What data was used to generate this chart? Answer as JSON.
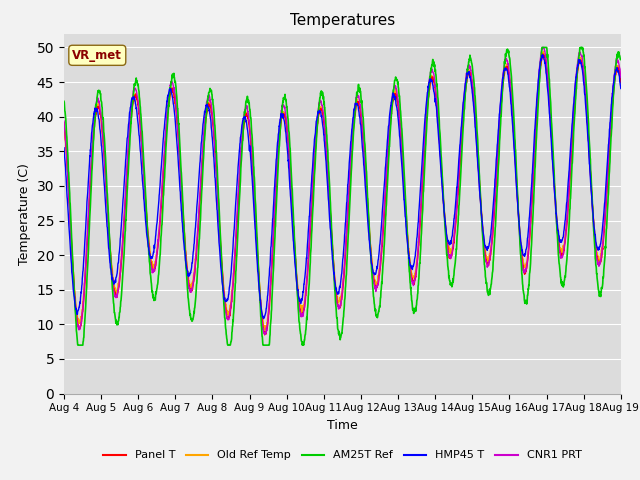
{
  "title": "Temperatures",
  "xlabel": "Time",
  "ylabel": "Temperature (C)",
  "ylim": [
    0,
    52
  ],
  "yticks": [
    0,
    5,
    10,
    15,
    20,
    25,
    30,
    35,
    40,
    45,
    50
  ],
  "background_color": "#dcdcdc",
  "figure_color": "#f2f2f2",
  "series": [
    {
      "label": "Panel T",
      "color": "#ff0000",
      "lw": 1.0,
      "zorder": 3
    },
    {
      "label": "Old Ref Temp",
      "color": "#ffa500",
      "lw": 1.0,
      "zorder": 2
    },
    {
      "label": "AM25T Ref",
      "color": "#00cc00",
      "lw": 1.2,
      "zorder": 4
    },
    {
      "label": "HMP45 T",
      "color": "#0000ff",
      "lw": 1.0,
      "zorder": 5
    },
    {
      "label": "CNR1 PRT",
      "color": "#cc00cc",
      "lw": 1.0,
      "zorder": 3
    }
  ],
  "annotation_text": "VR_met",
  "date_labels": [
    "Aug 4",
    "Aug 5",
    "Aug 6",
    "Aug 7",
    "Aug 8",
    "Aug 9",
    "Aug 10",
    "Aug 11",
    "Aug 12",
    "Aug 13",
    "Aug 14",
    "Aug 15",
    "Aug 16",
    "Aug 17",
    "Aug 18",
    "Aug 19"
  ],
  "legend_ncol": 5
}
